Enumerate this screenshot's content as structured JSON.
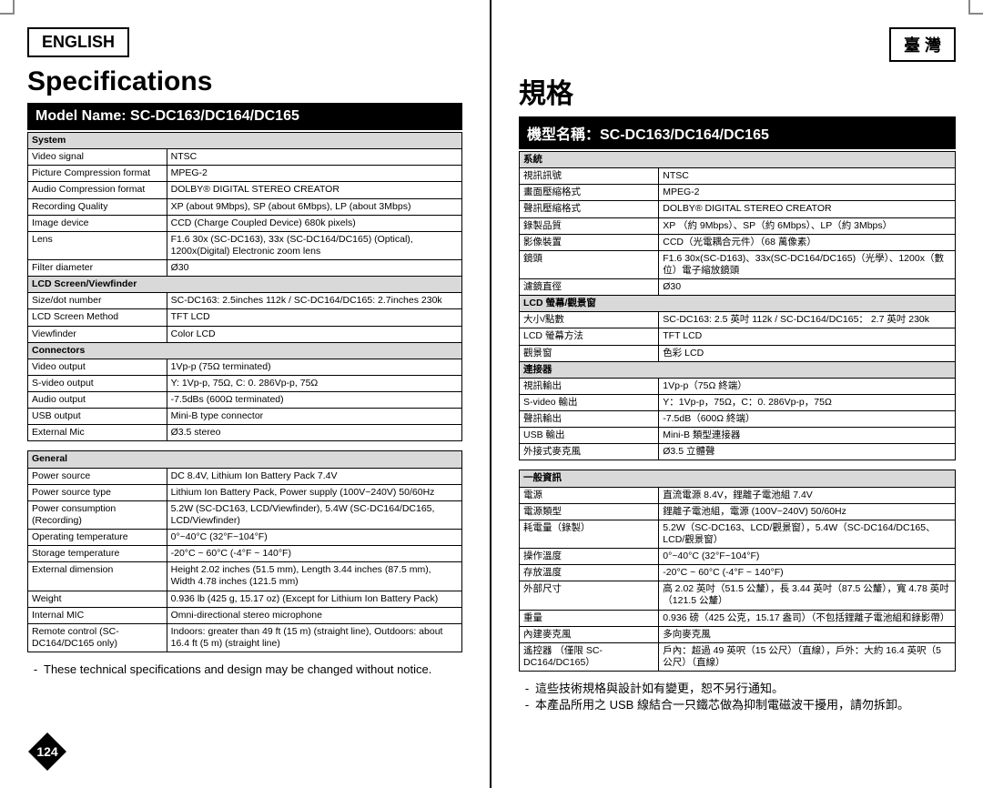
{
  "left": {
    "lang_label": "ENGLISH",
    "title": "Specifications",
    "model_bar": "Model Name: SC-DC163/DC164/DC165",
    "sections": [
      {
        "header": "System",
        "rows": [
          [
            "Video signal",
            "NTSC"
          ],
          [
            "Picture Compression format",
            "MPEG-2"
          ],
          [
            "Audio Compression format",
            "DOLBY® DIGITAL STEREO CREATOR"
          ],
          [
            "Recording Quality",
            "XP (about 9Mbps), SP (about 6Mbps), LP (about 3Mbps)"
          ],
          [
            "Image device",
            "CCD (Charge Coupled Device) 680k pixels)"
          ],
          [
            "Lens",
            "F1.6 30x (SC-DC163), 33x (SC-DC164/DC165) (Optical), 1200x(Digital) Electronic zoom lens"
          ],
          [
            "Filter diameter",
            "Ø30"
          ]
        ]
      },
      {
        "header": "LCD Screen/Viewfinder",
        "rows": [
          [
            "Size/dot number",
            "SC-DC163: 2.5inches 112k / SC-DC164/DC165: 2.7inches 230k"
          ],
          [
            "LCD Screen Method",
            "TFT LCD"
          ],
          [
            "Viewfinder",
            "Color LCD"
          ]
        ]
      },
      {
        "header": "Connectors",
        "rows": [
          [
            "Video output",
            "1Vp-p (75Ω terminated)"
          ],
          [
            "S-video output",
            "Y: 1Vp-p, 75Ω, C: 0. 286Vp-p, 75Ω"
          ],
          [
            "Audio output",
            "-7.5dBs (600Ω terminated)"
          ],
          [
            "USB output",
            "Mini-B type connector"
          ],
          [
            "External Mic",
            "Ø3.5 stereo"
          ]
        ]
      }
    ],
    "general": {
      "header": "General",
      "rows": [
        [
          "Power source",
          "DC 8.4V, Lithium Ion Battery Pack 7.4V"
        ],
        [
          "Power source type",
          "Lithium Ion Battery Pack, Power supply (100V~240V) 50/60Hz"
        ],
        [
          "Power consumption (Recording)",
          "5.2W (SC-DC163, LCD/Viewfinder), 5.4W (SC-DC164/DC165, LCD/Viewfinder)"
        ],
        [
          "Operating temperature",
          "0°~40°C (32°F~104°F)"
        ],
        [
          "Storage temperature",
          "-20°C ~ 60°C (-4°F ~ 140°F)"
        ],
        [
          "External dimension",
          "Height 2.02 inches (51.5 mm), Length 3.44 inches (87.5 mm), Width 4.78 inches (121.5 mm)"
        ],
        [
          "Weight",
          "0.936 lb (425 g, 15.17 oz) (Except for Lithium Ion Battery Pack)"
        ],
        [
          "Internal MIC",
          "Omni-directional stereo microphone"
        ],
        [
          "Remote control (SC-DC164/DC165 only)",
          "Indoors: greater than 49 ft (15 m) (straight line), Outdoors: about 16.4 ft (5 m) (straight line)"
        ]
      ]
    },
    "note1": "These technical specifications and design may be changed without notice.",
    "page_number": "124"
  },
  "right": {
    "lang_label": "臺 灣",
    "title": "規格",
    "model_bar": "機型名稱：SC-DC163/DC164/DC165",
    "sections": [
      {
        "header": "系統",
        "rows": [
          [
            "視訊訊號",
            "NTSC"
          ],
          [
            "畫面壓縮格式",
            "MPEG-2"
          ],
          [
            "聲訊壓縮格式",
            "DOLBY® DIGITAL STEREO CREATOR"
          ],
          [
            "錄製品質",
            "XP （約 9Mbps）、SP（約 6Mbps）、LP（約 3Mbps）"
          ],
          [
            "影像裝置",
            "CCD（光電耦合元件）（68 萬像素）"
          ],
          [
            "鏡頭",
            "F1.6 30x(SC-D163)、33x(SC-DC164/DC165)（光學）、1200x（數位）電子縮放鏡頭"
          ],
          [
            "濾鏡直徑",
            "Ø30"
          ]
        ]
      },
      {
        "header": "LCD 螢幕/觀景窗",
        "rows": [
          [
            "大小/點數",
            "SC-DC163: 2.5 英吋 112k / SC-DC164/DC165： 2.7 英吋 230k"
          ],
          [
            "LCD 螢幕方法",
            "TFT LCD"
          ],
          [
            "觀景窗",
            "色彩 LCD"
          ]
        ]
      },
      {
        "header": "連接器",
        "rows": [
          [
            "視訊輸出",
            "1Vp-p（75Ω 終端）"
          ],
          [
            "S-video 輸出",
            "Y：1Vp-p，75Ω，C：0. 286Vp-p，75Ω"
          ],
          [
            "聲訊輸出",
            "-7.5dB（600Ω 終端）"
          ],
          [
            "USB 輸出",
            "Mini-B 類型連接器"
          ],
          [
            "外接式麥克風",
            "Ø3.5 立體聲"
          ]
        ]
      }
    ],
    "general": {
      "header": "一般資訊",
      "rows": [
        [
          "電源",
          "直流電源 8.4V，鋰離子電池組 7.4V"
        ],
        [
          "電源類型",
          "鋰離子電池組，電源 (100V~240V) 50/60Hz"
        ],
        [
          "耗電量（錄製）",
          "5.2W（SC-DC163、LCD/觀景窗），5.4W（SC-DC164/DC165、LCD/觀景窗）"
        ],
        [
          "操作溫度",
          "0°~40°C (32°F~104°F)"
        ],
        [
          "存放溫度",
          "-20°C ~ 60°C (-4°F ~ 140°F)"
        ],
        [
          "外部尺寸",
          "高 2.02 英吋（51.5 公釐），長 3.44 英吋（87.5 公釐），寬 4.78 英吋（121.5 公釐）"
        ],
        [
          "重量",
          "0.936 磅（425 公克，15.17 盎司）（不包括鋰離子電池組和錄影帶）"
        ],
        [
          "內建麥克風",
          "多向麥克風"
        ],
        [
          "遙控器 （僅限 SC-DC164/DC165）",
          "戶內：超過 49 英呎（15 公尺）（直線），戶外：大約 16.4 英呎（5 公尺）（直線）"
        ]
      ]
    },
    "note1": "這些技術規格與設計如有變更，恕不另行通知。",
    "note2": "本產品所用之 USB 線結合一只鐵芯做為抑制電磁波干擾用，請勿拆卸。"
  }
}
